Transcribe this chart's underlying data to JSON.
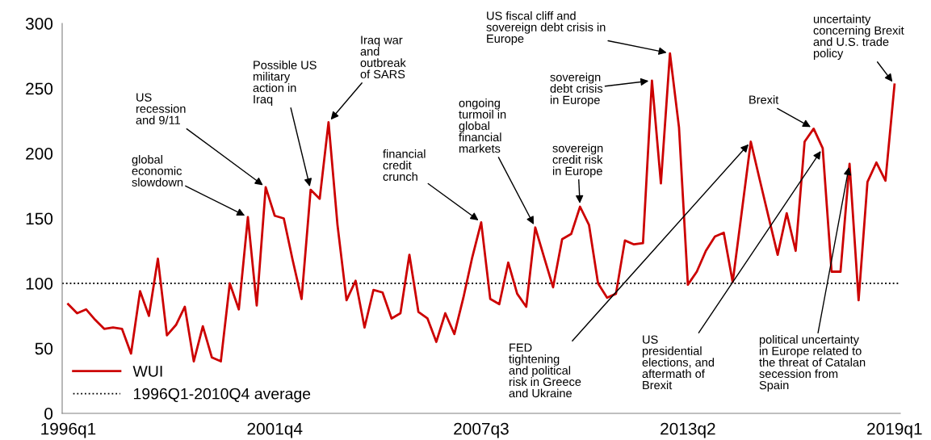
{
  "chart_data": {
    "type": "line",
    "x": [
      "1996-01",
      "1996-04",
      "1996-07",
      "1996-10",
      "1997-01",
      "1997-04",
      "1997-07",
      "1997-10",
      "1998-01",
      "1998-04",
      "1998-07",
      "1998-10",
      "1999-01",
      "1999-04",
      "1999-07",
      "1999-10",
      "2000-01",
      "2000-04",
      "2000-07",
      "2000-10",
      "2001-01",
      "2001-04",
      "2001-07",
      "2001-10",
      "2002-01",
      "2002-04",
      "2002-07",
      "2002-10",
      "2003-01",
      "2003-04",
      "2003-07",
      "2003-10",
      "2004-01",
      "2004-04",
      "2004-07",
      "2004-10",
      "2005-01",
      "2005-04",
      "2005-07",
      "2005-10",
      "2006-01",
      "2006-04",
      "2006-07",
      "2006-10",
      "2007-01",
      "2007-04",
      "2007-07",
      "2007-10",
      "2008-01",
      "2008-04",
      "2008-07",
      "2008-10",
      "2009-01",
      "2009-04",
      "2009-07",
      "2009-10",
      "2010-01",
      "2010-04",
      "2010-07",
      "2010-10",
      "2011-01",
      "2011-04",
      "2011-07",
      "2011-10",
      "2012-01",
      "2012-04",
      "2012-07",
      "2012-10",
      "2013-01",
      "2013-04",
      "2013-07",
      "2013-10",
      "2014-01",
      "2014-04",
      "2014-07",
      "2014-10",
      "2015-01",
      "2015-04",
      "2015-07",
      "2015-10",
      "2016-01",
      "2016-04",
      "2016-07",
      "2016-10",
      "2017-01",
      "2017-04",
      "2017-07",
      "2017-10",
      "2018-01",
      "2018-04",
      "2018-07",
      "2018-10",
      "2019-01"
    ],
    "series": [
      {
        "name": "WUI",
        "color": "#cc0000",
        "values": [
          84,
          77,
          80,
          72,
          65,
          66,
          65,
          46,
          94,
          75,
          119,
          60,
          68,
          82,
          40,
          67,
          43,
          40,
          100,
          80,
          151,
          83,
          174,
          152,
          150,
          118,
          88,
          172,
          165,
          224,
          145,
          87,
          102,
          66,
          95,
          93,
          73,
          77,
          122,
          78,
          73,
          55,
          77,
          61,
          89,
          120,
          147,
          88,
          84,
          116,
          92,
          82,
          143,
          120,
          97,
          134,
          138,
          159,
          145,
          100,
          89,
          92,
          133,
          130,
          131,
          256,
          177,
          277,
          220,
          99,
          109,
          125,
          136,
          139,
          101,
          155,
          209,
          180,
          151,
          122,
          154,
          125,
          209,
          219,
          204,
          109,
          109,
          192,
          87,
          178,
          193,
          179,
          253
        ]
      }
    ],
    "xlim": [
      "1995-11",
      "2019-03"
    ],
    "xticks": [
      {
        "value": "1996-01",
        "label": "1996q1"
      },
      {
        "value": "2001-10",
        "label": "2001q4"
      },
      {
        "value": "2007-07",
        "label": "2007q3"
      },
      {
        "value": "2013-04",
        "label": "2013q2"
      },
      {
        "value": "2019-01",
        "label": "2019q1"
      }
    ],
    "ylim": [
      0,
      300
    ],
    "yticks": [
      0,
      50,
      100,
      150,
      200,
      250,
      300
    ],
    "ref_lines": [
      {
        "axis": "y",
        "value": 100,
        "label": "1996Q1-2010Q4 average",
        "color": "#000000",
        "line_style": "dotted"
      }
    ],
    "annotations": [
      {
        "text": "global\neconomic\nslowdown",
        "x": "2001-01",
        "y": 151
      },
      {
        "text": "US\nrecession\nand 9/11",
        "x": "2001-07",
        "y": 174
      },
      {
        "text": "Possible US\nmilitary\naction in\nIraq",
        "x": "2002-10",
        "y": 172
      },
      {
        "text": "Iraq war\nand\noutbreak\nof SARS",
        "x": "2003-04",
        "y": 224
      },
      {
        "text": "financial\ncredit\ncrunch",
        "x": "2007-07",
        "y": 147
      },
      {
        "text": "ongoing\nturmoil in\nglobal\nfinancial\nmarkets",
        "x": "2009-01",
        "y": 143
      },
      {
        "text": "sovereign\ncredit risk\nin Europe",
        "x": "2010-04",
        "y": 159
      },
      {
        "text": "sovereign\ndebt crisis\nin Europe",
        "x": "2012-04",
        "y": 256
      },
      {
        "text": "US fiscal cliff and\nsovereign debt crisis in\nEurope",
        "x": "2012-10",
        "y": 277
      },
      {
        "text": "FED\ntightening\nand political\nrisk in Greece\nand Ukraine",
        "x": "2015-01",
        "y": 209
      },
      {
        "text": "Brexit",
        "x": "2016-10",
        "y": 219
      },
      {
        "text": "US\npresidential\nelections, and\naftermath of\nBrexit",
        "x": "2017-01",
        "y": 204
      },
      {
        "text": "political uncertainty\nin Europe related to\nthe threat of Catalan\nsecession from\nSpain",
        "x": "2017-10",
        "y": 192
      },
      {
        "text": "uncertainty\nconcerning Brexit\nand U.S. trade\npolicy",
        "x": "2019-01",
        "y": 253
      }
    ],
    "legend": "bottom left",
    "grid": false,
    "marker": "none",
    "line_style": "solid"
  }
}
